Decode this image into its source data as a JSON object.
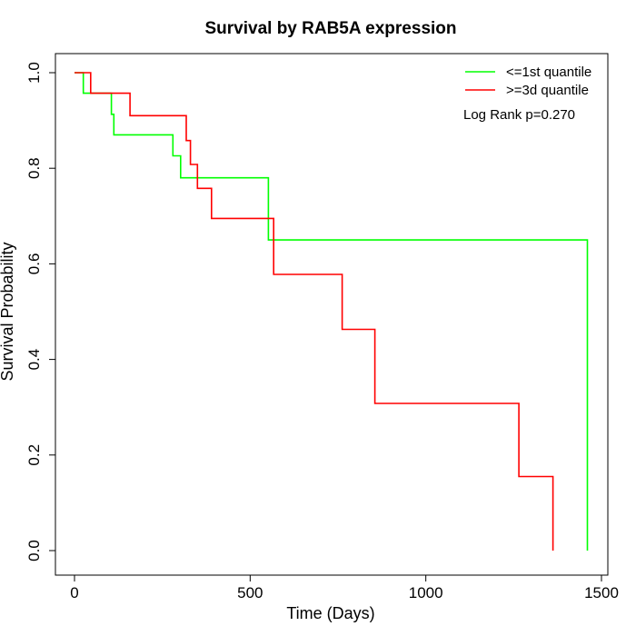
{
  "chart_data": {
    "type": "line",
    "title": "Survival by RAB5A expression",
    "xlabel": "Time (Days)",
    "ylabel": "Survival Probability",
    "xlim": [
      0,
      1500
    ],
    "ylim": [
      0,
      1.0
    ],
    "xticks": [
      0,
      500,
      1000,
      1500
    ],
    "yticks": [
      0.0,
      0.2,
      0.4,
      0.6,
      0.8,
      1.0
    ],
    "xtick_labels": [
      "0",
      "500",
      "1000",
      "1500"
    ],
    "ytick_labels": [
      "0.0",
      "0.2",
      "0.4",
      "0.6",
      "0.8",
      "1.0"
    ],
    "grid": false,
    "legend_position": "top-right",
    "annotation": "Log Rank p=0.270",
    "series": [
      {
        "name": "<=1st quantile",
        "color": "#00ff00",
        "step": true,
        "points": [
          [
            0,
            1.0
          ],
          [
            25,
            1.0
          ],
          [
            25,
            0.957
          ],
          [
            105,
            0.957
          ],
          [
            105,
            0.913
          ],
          [
            112,
            0.913
          ],
          [
            112,
            0.87
          ],
          [
            280,
            0.87
          ],
          [
            280,
            0.826
          ],
          [
            302,
            0.826
          ],
          [
            302,
            0.78
          ],
          [
            552,
            0.78
          ],
          [
            552,
            0.65
          ],
          [
            1460,
            0.65
          ],
          [
            1460,
            0.0
          ]
        ]
      },
      {
        "name": ">=3d quantile",
        "color": "#ff0000",
        "step": true,
        "points": [
          [
            0,
            1.0
          ],
          [
            46,
            1.0
          ],
          [
            46,
            0.957
          ],
          [
            158,
            0.957
          ],
          [
            158,
            0.91
          ],
          [
            318,
            0.91
          ],
          [
            318,
            0.858
          ],
          [
            330,
            0.858
          ],
          [
            330,
            0.808
          ],
          [
            350,
            0.808
          ],
          [
            350,
            0.758
          ],
          [
            390,
            0.758
          ],
          [
            390,
            0.695
          ],
          [
            567,
            0.695
          ],
          [
            567,
            0.578
          ],
          [
            762,
            0.578
          ],
          [
            762,
            0.463
          ],
          [
            855,
            0.463
          ],
          [
            855,
            0.308
          ],
          [
            1265,
            0.308
          ],
          [
            1265,
            0.155
          ],
          [
            1362,
            0.155
          ],
          [
            1362,
            0.0
          ]
        ]
      }
    ]
  }
}
